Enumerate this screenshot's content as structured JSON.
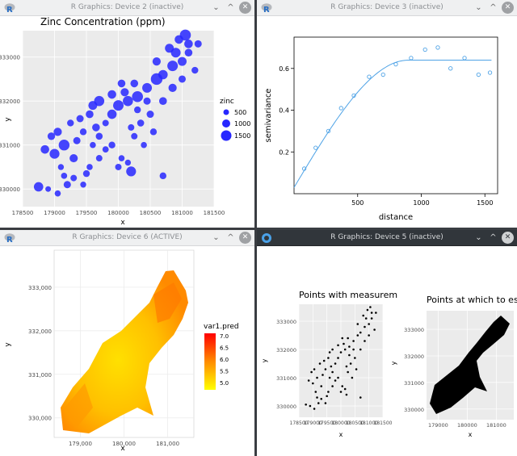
{
  "windows": [
    {
      "title": "R Graphics: Device 2 (inactive)"
    },
    {
      "title": "R Graphics: Device 3 (inactive)"
    },
    {
      "title": "R Graphics: Device 6 (ACTIVE)"
    },
    {
      "title": "R Graphics: Device 5 (inactive)"
    }
  ],
  "chart_data": [
    {
      "type": "scatter",
      "title": "Zinc Concentration (ppm)",
      "xlabel": "x",
      "ylabel": "y",
      "xlim": [
        178500,
        181500
      ],
      "ylim": [
        329600,
        333600
      ],
      "x_ticks": [
        "178500",
        "179000",
        "179500",
        "180000",
        "180500",
        "181000",
        "181500"
      ],
      "y_ticks": [
        "330000",
        "331000",
        "332000",
        "333000"
      ],
      "legend": {
        "title": "zinc",
        "entries": [
          "500",
          "1000",
          "1500"
        ],
        "placement": "right"
      },
      "points": [
        [
          179200,
          330100,
          400
        ],
        [
          179300,
          330250,
          250
        ],
        [
          179500,
          330350,
          300
        ],
        [
          179050,
          329900,
          200
        ],
        [
          178900,
          330000,
          150
        ],
        [
          178750,
          330050,
          900
        ],
        [
          179100,
          330500,
          180
        ],
        [
          179300,
          330700,
          600
        ],
        [
          179000,
          330800,
          1100
        ],
        [
          178850,
          330900,
          700
        ],
        [
          179150,
          331000,
          1400
        ],
        [
          179350,
          331100,
          400
        ],
        [
          179450,
          331300,
          300
        ],
        [
          179650,
          331400,
          500
        ],
        [
          179800,
          331500,
          250
        ],
        [
          179900,
          331700,
          900
        ],
        [
          180000,
          331900,
          1300
        ],
        [
          180150,
          332000,
          1200
        ],
        [
          180300,
          332100,
          1500
        ],
        [
          180450,
          332300,
          1000
        ],
        [
          180600,
          332500,
          1700
        ],
        [
          180700,
          332600,
          900
        ],
        [
          180850,
          332800,
          1300
        ],
        [
          181000,
          332900,
          800
        ],
        [
          180900,
          333100,
          1000
        ],
        [
          181100,
          333300,
          700
        ],
        [
          181050,
          333500,
          1500
        ],
        [
          179600,
          331900,
          800
        ],
        [
          179700,
          332000,
          1200
        ],
        [
          179900,
          332150,
          700
        ],
        [
          180100,
          332200,
          600
        ],
        [
          180250,
          332400,
          500
        ],
        [
          180350,
          331500,
          350
        ],
        [
          180500,
          331700,
          400
        ],
        [
          180250,
          331200,
          250
        ],
        [
          179800,
          330900,
          220
        ],
        [
          179900,
          331000,
          300
        ],
        [
          180050,
          330700,
          200
        ],
        [
          180000,
          330500,
          250
        ],
        [
          180150,
          330600,
          180
        ],
        [
          180200,
          330400,
          1100
        ],
        [
          180700,
          330300,
          300
        ],
        [
          180400,
          331000,
          200
        ],
        [
          180550,
          331300,
          300
        ],
        [
          180700,
          332000,
          500
        ],
        [
          180850,
          332300,
          600
        ],
        [
          181000,
          332500,
          400
        ],
        [
          181200,
          332700,
          300
        ],
        [
          181100,
          333100,
          500
        ],
        [
          181250,
          333300,
          400
        ],
        [
          180950,
          333400,
          700
        ],
        [
          179400,
          331600,
          400
        ],
        [
          179550,
          331700,
          500
        ],
        [
          179700,
          331200,
          350
        ],
        [
          179250,
          331500,
          300
        ],
        [
          178950,
          331200,
          450
        ],
        [
          179050,
          331300,
          600
        ],
        [
          179150,
          330300,
          200
        ],
        [
          179450,
          330100,
          180
        ],
        [
          179700,
          330700,
          250
        ],
        [
          180300,
          331800,
          300
        ],
        [
          180450,
          332000,
          400
        ],
        [
          180050,
          332400,
          500
        ],
        [
          180600,
          332900,
          600
        ],
        [
          180800,
          333200,
          800
        ],
        [
          180200,
          331400,
          250
        ],
        [
          179600,
          331000,
          200
        ],
        [
          179550,
          330500,
          200
        ]
      ]
    },
    {
      "type": "line",
      "xlabel": "distance",
      "ylabel": "semivariance",
      "xlim": [
        0,
        1600
      ],
      "ylim": [
        0,
        0.75
      ],
      "x_ticks": [
        "500",
        "1000",
        "1500"
      ],
      "y_ticks": [
        "0.2",
        "0.4",
        "0.6"
      ],
      "points": [
        [
          80,
          0.12
        ],
        [
          170,
          0.22
        ],
        [
          270,
          0.3
        ],
        [
          370,
          0.41
        ],
        [
          470,
          0.47
        ],
        [
          590,
          0.56
        ],
        [
          700,
          0.57
        ],
        [
          800,
          0.62
        ],
        [
          920,
          0.65
        ],
        [
          1030,
          0.69
        ],
        [
          1130,
          0.7
        ],
        [
          1230,
          0.6
        ],
        [
          1340,
          0.65
        ],
        [
          1450,
          0.57
        ],
        [
          1540,
          0.58
        ]
      ],
      "model_sill": 0.64,
      "model_range": 900,
      "model_nugget": 0.03
    },
    {
      "type": "heatmap",
      "xlabel": "x",
      "ylabel": "y",
      "xlim": [
        178400,
        181600
      ],
      "ylim": [
        329550,
        333850
      ],
      "x_ticks": [
        "179,000",
        "180,000",
        "181,000"
      ],
      "y_ticks": [
        "330,000",
        "331,000",
        "332,000",
        "333,000"
      ],
      "legend": {
        "title": "var1.pred",
        "entries": [
          "7.0",
          "6.5",
          "6.0",
          "5.5",
          "5.0"
        ],
        "placement": "right",
        "colors": [
          "#ff0000",
          "#ff8000",
          "#ffff00"
        ]
      }
    },
    {
      "type": "scatter",
      "title": "Points with measurem",
      "xlabel": "x",
      "ylabel": "y",
      "y_ticks": [
        "330000",
        "331000",
        "332000",
        "333000"
      ],
      "x_ticks": [
        "178500",
        "179000",
        "179500",
        "180000",
        "180500",
        "181000",
        "181500"
      ]
    },
    {
      "type": "scatter",
      "title": "Points at which to esti",
      "xlabel": "x",
      "ylabel": "y",
      "y_ticks": [
        "330000",
        "331000",
        "332000",
        "333000"
      ],
      "x_ticks": [
        "179000",
        "180000",
        "181000"
      ]
    }
  ]
}
